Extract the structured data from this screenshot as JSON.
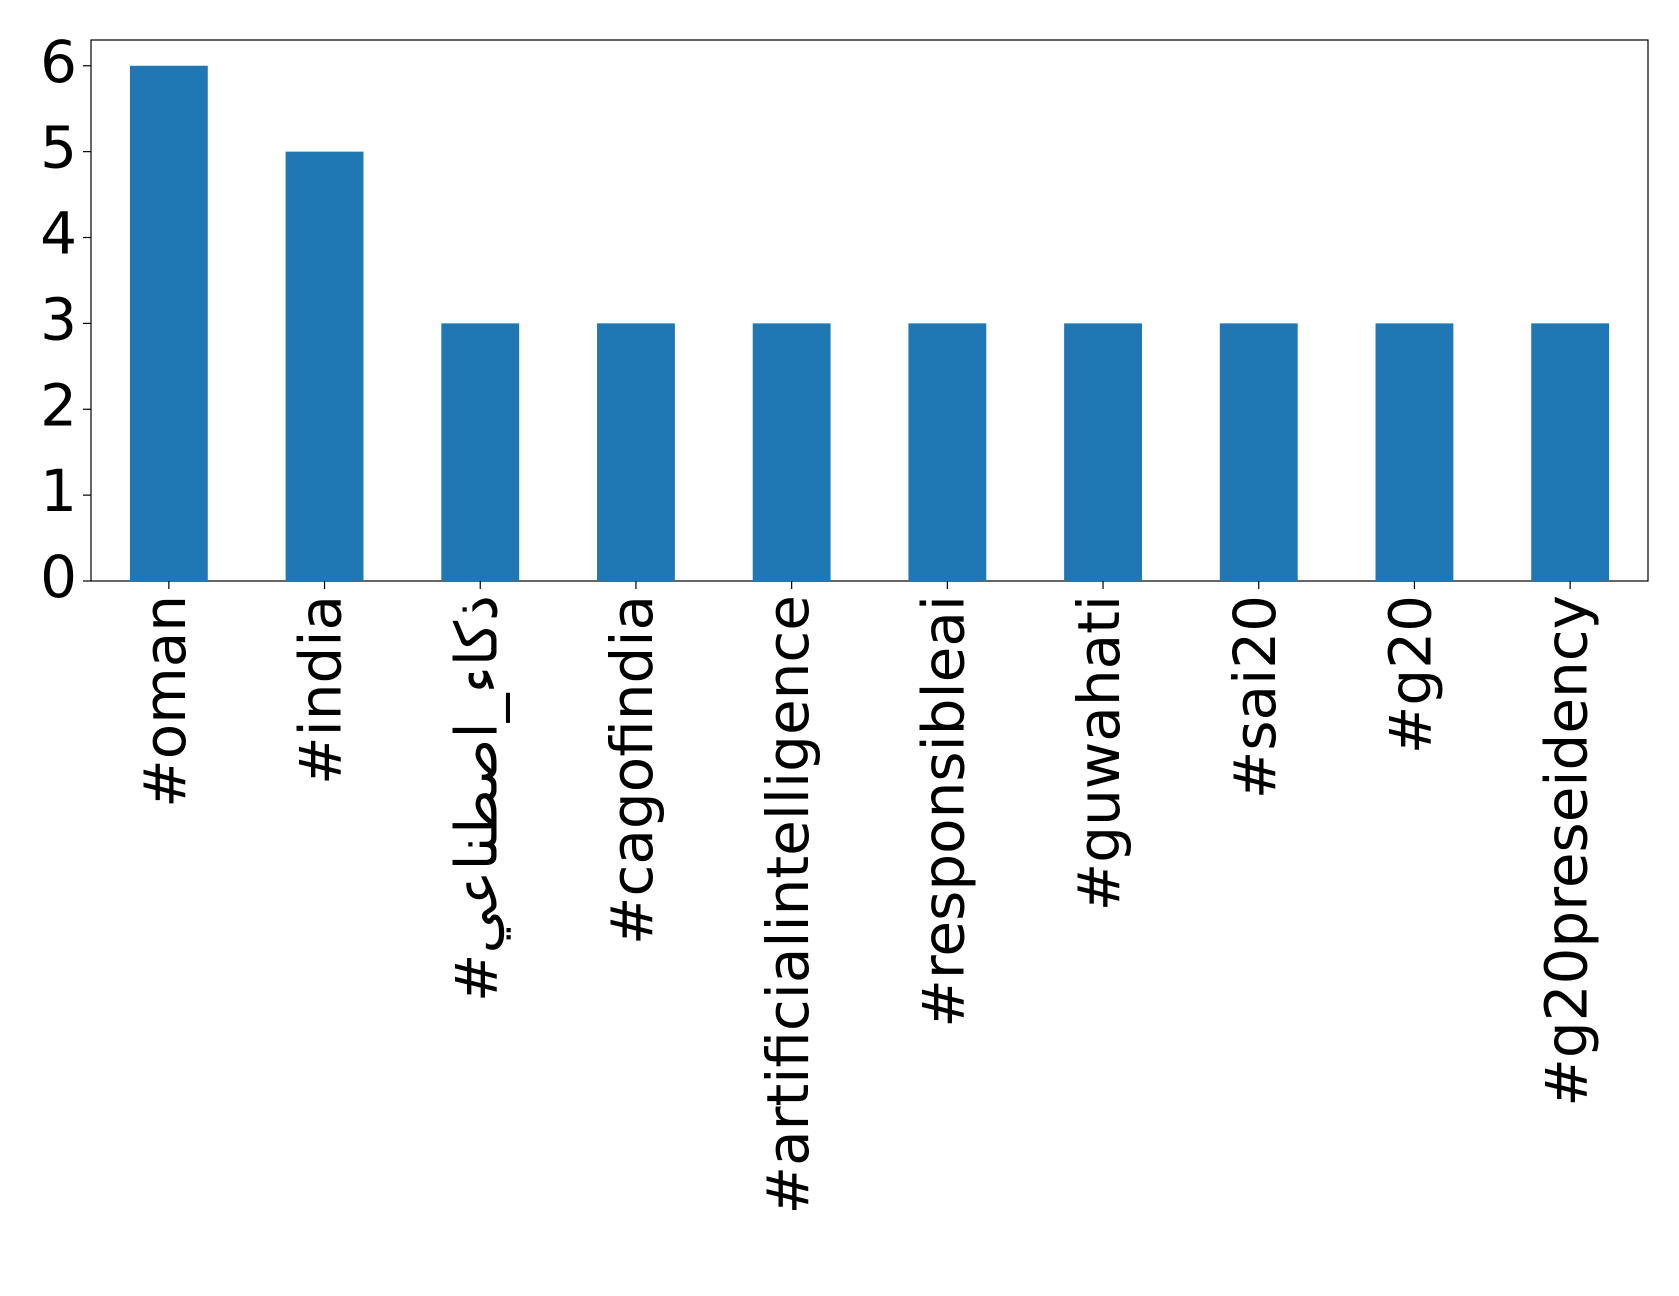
{
  "chart_data": {
    "type": "bar",
    "categories": [
      "#oman",
      "#india",
      "#ذكاء_اصطناعي",
      "#cagofindia",
      "#artificialintelligence",
      "#responsibleai",
      "#guwahati",
      "#sai20",
      "#g20",
      "#g20preseidency"
    ],
    "values": [
      6,
      5,
      3,
      3,
      3,
      3,
      3,
      3,
      3,
      3
    ],
    "color": "#1f77b4",
    "ylim": [
      0,
      6.3
    ],
    "yticks": [
      0,
      1,
      2,
      3,
      4,
      5,
      6
    ],
    "grid": false
  }
}
